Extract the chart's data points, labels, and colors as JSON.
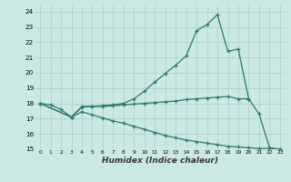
{
  "xlabel": "Humidex (Indice chaleur)",
  "bg_color": "#cce8e5",
  "grid_color": "#aaccca",
  "line_color": "#2a7a6a",
  "ylim": [
    15,
    24.4
  ],
  "xlim": [
    -0.5,
    23.5
  ],
  "yticks": [
    15,
    16,
    17,
    18,
    19,
    20,
    21,
    22,
    23,
    24
  ],
  "xticks": [
    0,
    1,
    2,
    3,
    4,
    5,
    6,
    7,
    8,
    9,
    10,
    11,
    12,
    13,
    14,
    15,
    16,
    17,
    18,
    19,
    20,
    21,
    22,
    23
  ],
  "line1_x": [
    0,
    1,
    2,
    3,
    4,
    5,
    6,
    7,
    8,
    9,
    10,
    11,
    12,
    13,
    14,
    15,
    16,
    17,
    18,
    19,
    20
  ],
  "line1_y": [
    18.0,
    17.9,
    17.6,
    17.1,
    17.8,
    17.8,
    17.8,
    17.85,
    17.9,
    17.95,
    18.0,
    18.05,
    18.1,
    18.15,
    18.25,
    18.3,
    18.35,
    18.4,
    18.45,
    18.3,
    18.3
  ],
  "line2_x": [
    0,
    3,
    4,
    5,
    6,
    7,
    8,
    9,
    10,
    11,
    12,
    13,
    14,
    15,
    16,
    17,
    18,
    19,
    20,
    21,
    22,
    23
  ],
  "line2_y": [
    18.0,
    17.1,
    17.75,
    17.8,
    17.85,
    17.9,
    18.0,
    18.3,
    18.8,
    19.4,
    19.95,
    20.5,
    21.1,
    22.75,
    23.15,
    23.8,
    21.4,
    21.55,
    18.3,
    17.3,
    15.1,
    15.0
  ],
  "line3_x": [
    0,
    3,
    4,
    5,
    6,
    7,
    8,
    9,
    10,
    11,
    12,
    13,
    14,
    15,
    16,
    17,
    18,
    19,
    20,
    21,
    22,
    23
  ],
  "line3_y": [
    18.0,
    17.1,
    17.45,
    17.25,
    17.05,
    16.85,
    16.7,
    16.5,
    16.3,
    16.1,
    15.9,
    15.75,
    15.6,
    15.5,
    15.4,
    15.3,
    15.2,
    15.15,
    15.1,
    15.05,
    15.05,
    15.0
  ]
}
